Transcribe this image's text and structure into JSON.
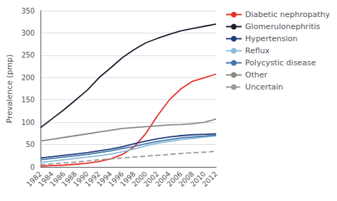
{
  "chart_data": {
    "type": "line",
    "ylabel": "Prevalence (pmp)",
    "x": [
      1982,
      1984,
      1986,
      1988,
      1990,
      1992,
      1994,
      1996,
      1998,
      2000,
      2002,
      2004,
      2006,
      2008,
      2010,
      2012
    ],
    "xlim": [
      1982,
      2012
    ],
    "xticks": [
      1982,
      1984,
      1986,
      1988,
      1990,
      1992,
      1994,
      1996,
      1998,
      2000,
      2002,
      2004,
      2006,
      2008,
      2010,
      2012
    ],
    "ylim": [
      0,
      350
    ],
    "yticks": [
      0,
      50,
      100,
      150,
      200,
      250,
      300,
      350
    ],
    "grid": true,
    "legend": "right",
    "series": [
      {
        "name": "Diabetic nephropathy",
        "color": "#e8302a",
        "line_style": "solid",
        "values": [
          2,
          3,
          4,
          6,
          8,
          12,
          18,
          28,
          45,
          75,
          115,
          150,
          175,
          192,
          200,
          208
        ]
      },
      {
        "name": "Glomerulonephritis",
        "color": "#1c1c2e",
        "line_style": "solid",
        "values": [
          88,
          108,
          128,
          150,
          172,
          200,
          222,
          245,
          263,
          278,
          288,
          297,
          305,
          310,
          315,
          320
        ]
      },
      {
        "name": "Hypertension",
        "color": "#1f3d7a",
        "line_style": "solid",
        "values": [
          20,
          23,
          26,
          29,
          32,
          36,
          40,
          45,
          52,
          58,
          63,
          67,
          70,
          72,
          73,
          74
        ]
      },
      {
        "name": "Reflux",
        "color": "#88bbdd",
        "line_style": "solid",
        "values": [
          10,
          13,
          16,
          19,
          22,
          25,
          29,
          34,
          40,
          47,
          53,
          57,
          61,
          64,
          67,
          70
        ]
      },
      {
        "name": "Polycystic disease",
        "color": "#4477aa",
        "line_style": "solid",
        "values": [
          16,
          19,
          22,
          25,
          28,
          32,
          36,
          41,
          46,
          52,
          57,
          61,
          65,
          67,
          69,
          71
        ]
      },
      {
        "name": "Other",
        "color": "#888880",
        "line_style": "solid",
        "values": [
          58,
          62,
          66,
          70,
          74,
          78,
          82,
          86,
          88,
          90,
          92,
          94,
          95,
          97,
          100,
          107
        ]
      },
      {
        "name": "Uncertain",
        "color": "#999999",
        "line_style": "dashed",
        "values": [
          5,
          7,
          9,
          11,
          13,
          16,
          18,
          20,
          22,
          24,
          26,
          28,
          30,
          32,
          33,
          35
        ]
      }
    ]
  }
}
